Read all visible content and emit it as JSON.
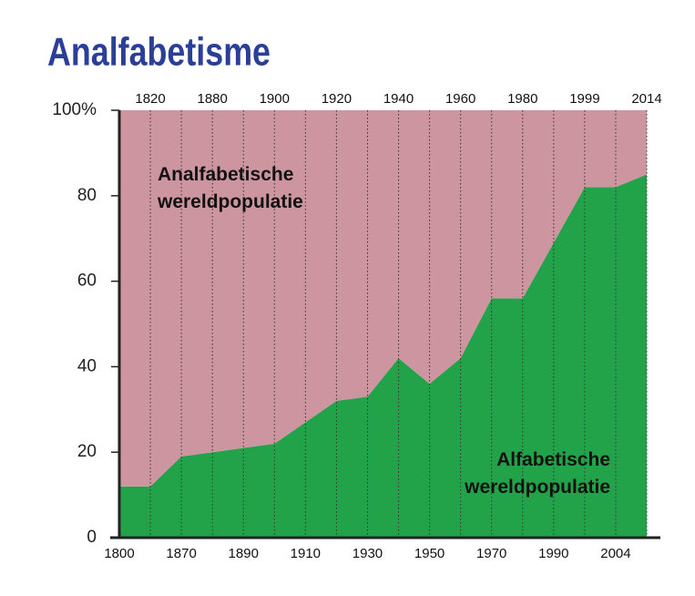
{
  "chart_data": {
    "type": "stacked_area",
    "title": "Analfabetisme",
    "categories": [
      "1800",
      "1820",
      "1870",
      "1880",
      "1890",
      "1900",
      "1910",
      "1920",
      "1930",
      "1940",
      "1950",
      "1960",
      "1970",
      "1980",
      "1990",
      "1999",
      "2004",
      "2014"
    ],
    "series": [
      {
        "name": "Alfabetische wereldpopulatie",
        "color": "#22a34a",
        "values": [
          12,
          12,
          19,
          20,
          21,
          22,
          27,
          32,
          33,
          42,
          36,
          42,
          56,
          56,
          69,
          82,
          82,
          85
        ]
      },
      {
        "name": "Analfabetische wereldpopulatie",
        "color": "#cc95a0",
        "values": [
          88,
          88,
          81,
          80,
          79,
          78,
          73,
          68,
          67,
          58,
          64,
          58,
          44,
          44,
          31,
          18,
          18,
          15
        ]
      }
    ],
    "ylim": [
      0,
      100
    ],
    "yticks": [
      0,
      20,
      40,
      60,
      80,
      {
        "value": 100,
        "label": "100%"
      }
    ]
  }
}
